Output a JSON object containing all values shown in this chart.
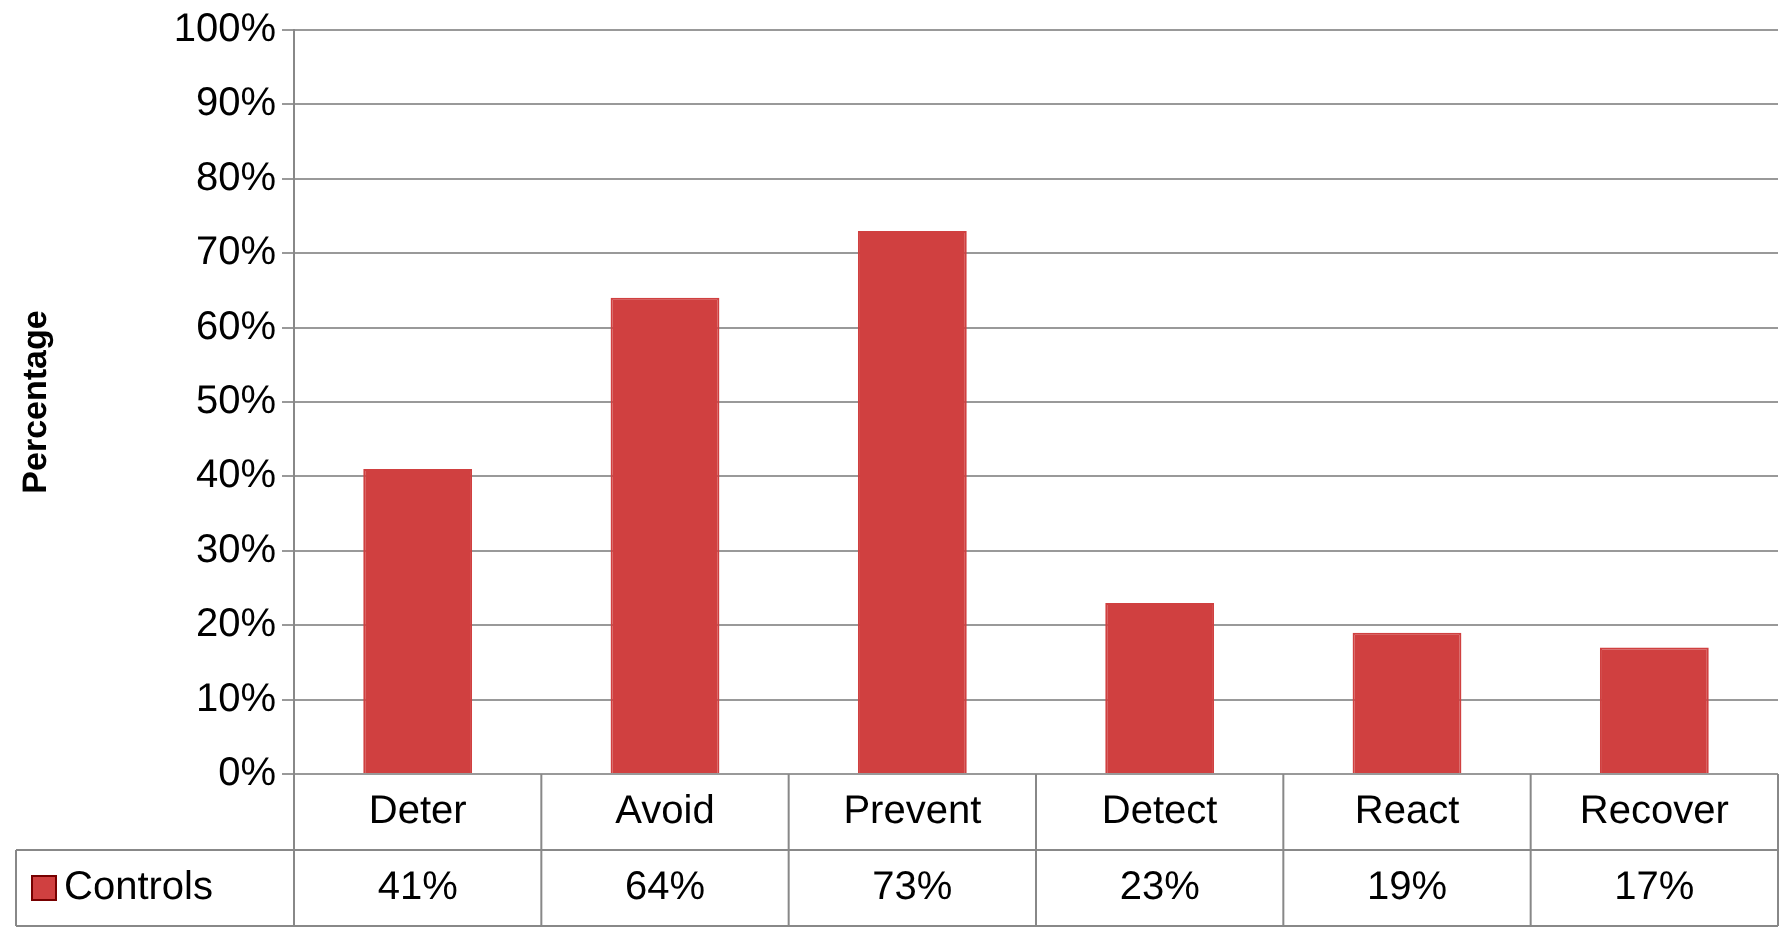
{
  "chart_data": {
    "type": "bar",
    "ylabel": "Percentage",
    "categories": [
      "Deter",
      "Avoid",
      "Prevent",
      "Detect",
      "React",
      "Recover"
    ],
    "series": [
      {
        "name": "Controls",
        "color": "#d04040",
        "values": [
          41,
          64,
          73,
          23,
          19,
          17
        ],
        "value_labels": [
          "41%",
          "64%",
          "73%",
          "23%",
          "19%",
          "17%"
        ]
      }
    ],
    "ylim": [
      0,
      100
    ],
    "yticks": [
      {
        "value": 0,
        "label": "0%"
      },
      {
        "value": 10,
        "label": "10%"
      },
      {
        "value": 20,
        "label": "20%"
      },
      {
        "value": 30,
        "label": "30%"
      },
      {
        "value": 40,
        "label": "40%"
      },
      {
        "value": 50,
        "label": "50%"
      },
      {
        "value": 60,
        "label": "60%"
      },
      {
        "value": 70,
        "label": "70%"
      },
      {
        "value": 80,
        "label": "80%"
      },
      {
        "value": 90,
        "label": "90%"
      },
      {
        "value": 100,
        "label": "100%"
      }
    ],
    "grid": "y",
    "legend": "bottom"
  }
}
